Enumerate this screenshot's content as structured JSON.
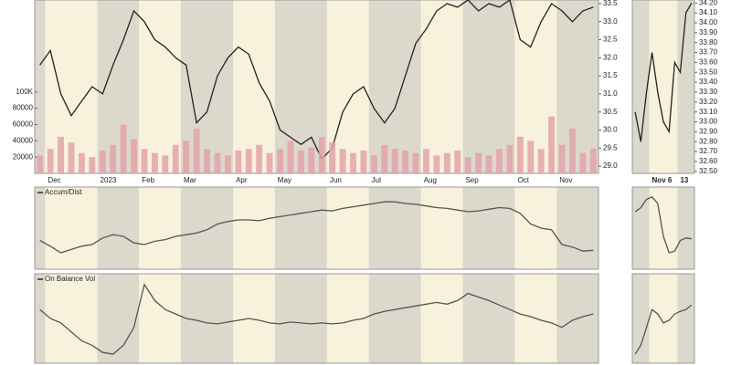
{
  "chart_data": [
    {
      "type": "line",
      "color": "#222222",
      "categories": [
        null,
        "Dec",
        null,
        null,
        null,
        null,
        "2023",
        null,
        null,
        null,
        "Feb",
        null,
        null,
        null,
        "Mar",
        null,
        null,
        null,
        null,
        "Apr",
        null,
        null,
        null,
        "May",
        null,
        null,
        null,
        null,
        "Jun",
        null,
        null,
        null,
        "Jul",
        null,
        null,
        null,
        null,
        "Aug",
        null,
        null,
        null,
        "Sep",
        null,
        null,
        null,
        null,
        "Oct",
        null,
        null,
        null,
        "Nov",
        null,
        null,
        null
      ],
      "values": [
        31.8,
        32.2,
        31.0,
        30.4,
        30.8,
        31.2,
        31.0,
        31.8,
        32.5,
        33.3,
        33.0,
        32.5,
        32.3,
        32.0,
        31.8,
        30.2,
        30.5,
        31.5,
        32.0,
        32.3,
        32.1,
        31.3,
        30.8,
        30.0,
        29.8,
        29.6,
        29.8,
        29.2,
        29.5,
        30.5,
        31.0,
        31.2,
        30.6,
        30.2,
        30.6,
        31.5,
        32.4,
        32.8,
        33.3,
        33.5,
        33.4,
        33.6,
        33.3,
        33.5,
        33.4,
        33.6,
        32.5,
        32.3,
        33.0,
        33.5,
        33.3,
        33.0,
        33.3,
        33.4
      ],
      "ylim": [
        28.8,
        33.6
      ],
      "yticks": [
        {
          "value": 33.5,
          "label": "33.5"
        },
        {
          "value": 33.0,
          "label": "33.0"
        },
        {
          "value": 32.5,
          "label": "32.5"
        },
        {
          "value": 32.0,
          "label": "32.0"
        },
        {
          "value": 31.5,
          "label": "31.5"
        },
        {
          "value": 31.0,
          "label": "31.0"
        },
        {
          "value": 30.5,
          "label": "30.5"
        },
        {
          "value": 30.0,
          "label": "30.0"
        },
        {
          "value": 29.5,
          "label": "29.5"
        },
        {
          "value": 29.0,
          "label": "29.0"
        }
      ]
    },
    {
      "type": "bar",
      "color": "#e3a3a9",
      "values": [
        22000,
        30000,
        45000,
        38000,
        25000,
        20000,
        28000,
        35000,
        60000,
        42000,
        30000,
        25000,
        22000,
        35000,
        40000,
        55000,
        30000,
        25000,
        22000,
        28000,
        30000,
        35000,
        25000,
        30000,
        40000,
        28000,
        32000,
        45000,
        38000,
        30000,
        25000,
        28000,
        22000,
        35000,
        30000,
        28000,
        25000,
        30000,
        22000,
        25000,
        28000,
        20000,
        25000,
        22000,
        30000,
        35000,
        45000,
        40000,
        30000,
        70000,
        35000,
        55000,
        25000,
        30000
      ],
      "ylim": [
        0,
        213000
      ],
      "yticks": [
        {
          "value": 100000,
          "label": "100K"
        },
        20000,
        40000,
        60000,
        80000
      ]
    },
    {
      "type": "line",
      "title": "Accum/Dist",
      "color": "#555555",
      "values": [
        35,
        28,
        20,
        24,
        28,
        30,
        38,
        42,
        40,
        32,
        30,
        34,
        36,
        40,
        42,
        44,
        48,
        55,
        58,
        60,
        60,
        59,
        62,
        64,
        66,
        68,
        70,
        72,
        71,
        74,
        76,
        78,
        80,
        82,
        82,
        80,
        79,
        77,
        75,
        74,
        72,
        70,
        71,
        73,
        75,
        74,
        68,
        55,
        50,
        48,
        30,
        27,
        22,
        23
      ],
      "ylim": [
        0,
        100
      ]
    },
    {
      "type": "line",
      "title": "On Balance Vol",
      "color": "#555555",
      "values": [
        60,
        50,
        45,
        35,
        25,
        20,
        12,
        10,
        20,
        40,
        88,
        70,
        60,
        55,
        50,
        48,
        45,
        44,
        46,
        48,
        50,
        48,
        45,
        44,
        46,
        45,
        44,
        45,
        44,
        45,
        48,
        50,
        55,
        58,
        60,
        62,
        64,
        66,
        68,
        66,
        70,
        78,
        74,
        70,
        65,
        60,
        55,
        52,
        48,
        45,
        40,
        48,
        52,
        55
      ],
      "ylim": [
        0,
        100
      ]
    },
    {
      "type": "line",
      "color": "#222222",
      "categories": [
        null,
        null,
        null,
        "Nov 6",
        null,
        null,
        null,
        null,
        "13",
        null,
        null
      ],
      "values": [
        33.1,
        32.8,
        33.3,
        33.7,
        33.3,
        33.0,
        32.9,
        33.6,
        33.5,
        34.1,
        34.2
      ],
      "ylim": [
        32.48,
        34.23
      ],
      "yticks": [
        {
          "value": 34.2,
          "label": "34.20"
        },
        {
          "value": 34.1,
          "label": "34.10"
        },
        {
          "value": 34.0,
          "label": "34.00"
        },
        {
          "value": 33.9,
          "label": "33.90"
        },
        {
          "value": 33.8,
          "label": "33.80"
        },
        {
          "value": 33.7,
          "label": "33.70"
        },
        {
          "value": 33.6,
          "label": "33.60"
        },
        {
          "value": 33.5,
          "label": "33.50"
        },
        {
          "value": 33.4,
          "label": "33.40"
        },
        {
          "value": 33.3,
          "label": "33.30"
        },
        {
          "value": 33.2,
          "label": "33.20"
        },
        {
          "value": 33.1,
          "label": "33.10"
        },
        {
          "value": 33.0,
          "label": "33.00"
        },
        {
          "value": 32.9,
          "label": "32.90"
        },
        {
          "value": 32.8,
          "label": "32.80"
        },
        {
          "value": 32.7,
          "label": "32.70"
        },
        {
          "value": 32.6,
          "label": "32.60"
        },
        {
          "value": 32.5,
          "label": "32.50"
        }
      ]
    },
    {
      "type": "line",
      "color": "#555555",
      "values": [
        70,
        75,
        85,
        88,
        80,
        40,
        20,
        22,
        35,
        38,
        37
      ],
      "ylim": [
        0,
        100
      ]
    },
    {
      "type": "line",
      "color": "#555555",
      "values": [
        10,
        20,
        40,
        60,
        55,
        45,
        48,
        55,
        58,
        60,
        65
      ],
      "ylim": [
        0,
        100
      ]
    }
  ]
}
